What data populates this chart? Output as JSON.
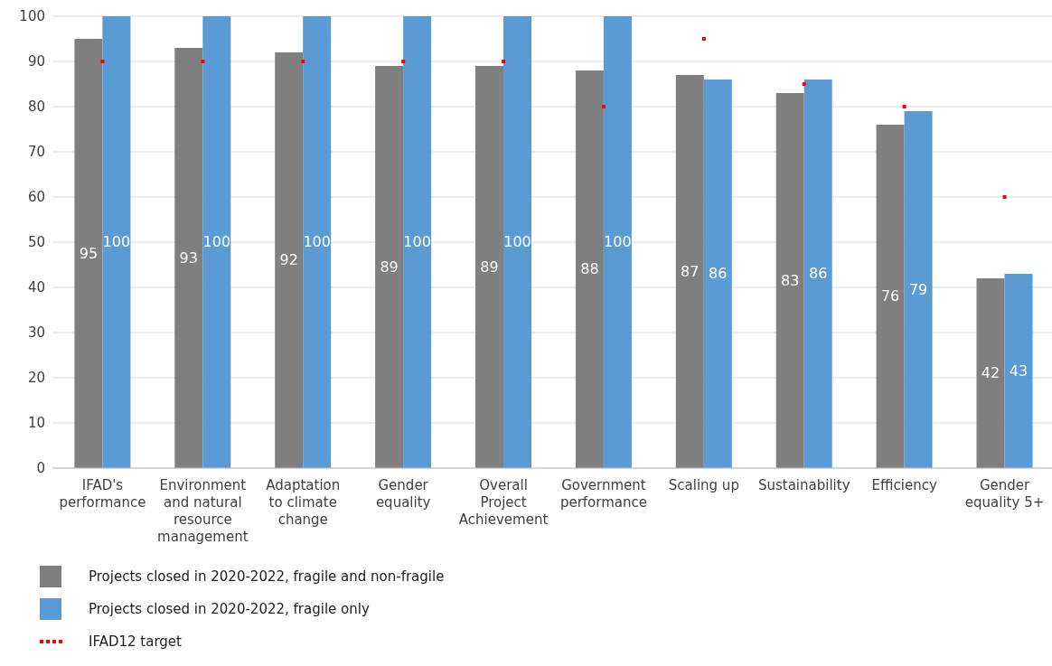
{
  "chart_data": {
    "type": "bar",
    "categories": [
      "IFAD's performance",
      "Environment and natural resource management",
      "Adaptation to climate change",
      "Gender equality",
      "Overall Project Achievement",
      "Government performance",
      "Scaling up",
      "Sustainability",
      "Efficiency",
      "Gender equality 5+"
    ],
    "series": [
      {
        "name": "Projects closed in 2020-2022, fragile and non-fragile",
        "color": "#7f7f7f",
        "values": [
          95,
          93,
          92,
          89,
          89,
          88,
          87,
          83,
          76,
          42
        ],
        "value_labels": [
          "95",
          "93",
          "92",
          "89",
          "89",
          "88",
          "87",
          "83",
          "76",
          "42"
        ]
      },
      {
        "name": "Projects closed in 2020-2022, fragile only",
        "color": "#5b9bd5",
        "values": [
          100,
          100,
          100,
          100,
          100,
          100,
          86,
          86,
          79,
          43
        ],
        "value_labels": [
          "100",
          "100",
          "100",
          "100",
          "100",
          "100",
          "86",
          "86",
          "79",
          "43"
        ]
      },
      {
        "name": "IFAD12 target",
        "type": "scatter",
        "color": "#ff0000",
        "line_style": "dotted",
        "values": [
          90,
          90,
          90,
          90,
          90,
          80,
          95,
          85,
          80,
          60
        ]
      }
    ],
    "ylim": [
      0,
      100
    ],
    "yticks": [
      0,
      10,
      20,
      30,
      40,
      50,
      60,
      70,
      80,
      90,
      100
    ],
    "grid": "y",
    "legend": "bottom"
  }
}
